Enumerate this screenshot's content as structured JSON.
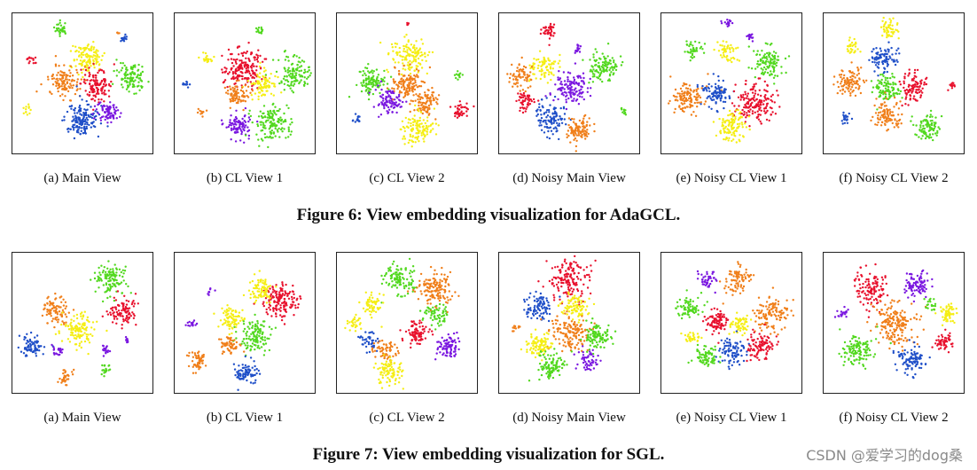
{
  "figures": [
    {
      "caption": "Figure 6: View embedding visualization for AdaGCL.",
      "panels": [
        {
          "label": "(a)  Main View"
        },
        {
          "label": "(b)  CL View 1"
        },
        {
          "label": "(c)  CL View 2"
        },
        {
          "label": "(d)  Noisy Main View"
        },
        {
          "label": "(e)  Noisy CL View 1"
        },
        {
          "label": "(f)  Noisy CL View 2"
        }
      ]
    },
    {
      "caption": "Figure 7: View embedding visualization for SGL.",
      "panels": [
        {
          "label": "(a)  Main View"
        },
        {
          "label": "(b)  CL View 1"
        },
        {
          "label": "(c)  CL View 2"
        },
        {
          "label": "(d)  Noisy Main View"
        },
        {
          "label": "(e)  Noisy CL View 1"
        },
        {
          "label": "(f)  Noisy CL View 2"
        }
      ]
    }
  ],
  "cluster_colors": {
    "red": "#e8112d",
    "orange": "#f07f1a",
    "yellow": "#f5ee14",
    "green": "#52d81f",
    "blue": "#1f4fc8",
    "purple": "#7a17e0"
  },
  "watermark": "CSDN @爱学习的dog桑"
}
